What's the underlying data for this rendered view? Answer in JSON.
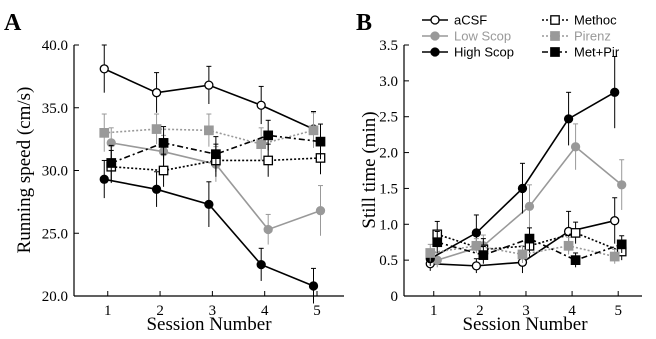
{
  "chart_data": [
    {
      "panel": "A",
      "type": "line",
      "xlabel": "Session Number",
      "ylabel": "Running speed (cm/s)",
      "x": [
        1,
        2,
        3,
        4,
        5
      ],
      "xticks": [
        "1",
        "2",
        "3",
        "4",
        "5"
      ],
      "ylim": [
        20,
        40
      ],
      "yticks": [
        "20.0",
        "25.0",
        "30.0",
        "35.0",
        "40.0"
      ],
      "legend": "none",
      "grid": false,
      "series": [
        {
          "key": "acsf",
          "values": [
            38.1,
            36.2,
            36.8,
            35.2,
            33.3
          ],
          "err": [
            1.9,
            1.6,
            1.5,
            1.5,
            1.4
          ]
        },
        {
          "key": "lowscop",
          "values": [
            32.2,
            31.5,
            30.5,
            25.3,
            26.8
          ],
          "err": [
            1.2,
            1.3,
            1.4,
            1.2,
            2.0
          ]
        },
        {
          "key": "highscop",
          "values": [
            29.3,
            28.5,
            27.3,
            22.5,
            20.8
          ],
          "err": [
            1.5,
            1.4,
            1.8,
            1.3,
            1.4
          ]
        },
        {
          "key": "methoc",
          "values": [
            30.3,
            30.0,
            30.8,
            30.8,
            31.0
          ],
          "err": [
            1.3,
            1.3,
            1.3,
            1.3,
            1.3
          ]
        },
        {
          "key": "pirenz",
          "values": [
            33.0,
            33.3,
            33.2,
            32.1,
            33.2
          ],
          "err": [
            1.5,
            1.2,
            1.3,
            1.3,
            1.4
          ]
        },
        {
          "key": "metpir",
          "values": [
            30.6,
            32.2,
            31.3,
            32.8,
            32.3
          ],
          "err": [
            1.4,
            1.3,
            1.4,
            1.2,
            1.4
          ]
        }
      ]
    },
    {
      "panel": "B",
      "type": "line",
      "xlabel": "Session Number",
      "ylabel": "Still time (min)",
      "x": [
        1,
        2,
        3,
        4,
        5
      ],
      "xticks": [
        "1",
        "2",
        "3",
        "4",
        "5"
      ],
      "ylim": [
        0,
        3.5
      ],
      "yticks": [
        "0",
        "0.5",
        "1.0",
        "1.5",
        "2.0",
        "2.5",
        "3.0",
        "3.5"
      ],
      "legend": "top-left",
      "grid": false,
      "series": [
        {
          "key": "acsf",
          "values": [
            0.45,
            0.42,
            0.47,
            0.9,
            1.05
          ],
          "err": [
            0.1,
            0.1,
            0.15,
            0.28,
            0.32
          ]
        },
        {
          "key": "lowscop",
          "values": [
            0.5,
            0.7,
            1.25,
            2.08,
            1.55
          ],
          "err": [
            0.1,
            0.15,
            0.3,
            0.32,
            0.35
          ]
        },
        {
          "key": "highscop",
          "values": [
            0.52,
            0.88,
            1.5,
            2.47,
            2.84
          ],
          "err": [
            0.1,
            0.25,
            0.35,
            0.37,
            0.5
          ]
        },
        {
          "key": "methoc",
          "values": [
            0.86,
            0.65,
            0.7,
            0.88,
            0.62
          ],
          "err": [
            0.18,
            0.15,
            0.15,
            0.15,
            0.12
          ]
        },
        {
          "key": "pirenz",
          "values": [
            0.6,
            0.7,
            0.58,
            0.7,
            0.55
          ],
          "err": [
            0.12,
            0.1,
            0.12,
            0.12,
            0.1
          ]
        },
        {
          "key": "metpir",
          "values": [
            0.75,
            0.57,
            0.8,
            0.5,
            0.72
          ],
          "err": [
            0.15,
            0.12,
            0.15,
            0.1,
            0.12
          ]
        }
      ]
    }
  ],
  "legend_entries": [
    {
      "key": "acsf",
      "label": "aCSF",
      "color": "#000000",
      "marker": "circle-open",
      "line": "solid"
    },
    {
      "key": "lowscop",
      "label": "Low Scop",
      "color": "#999999",
      "marker": "circle-filled",
      "line": "solid"
    },
    {
      "key": "highscop",
      "label": "High Scop",
      "color": "#000000",
      "marker": "circle-filled",
      "line": "solid"
    },
    {
      "key": "methoc",
      "label": "Methoc",
      "color": "#000000",
      "marker": "square-open",
      "line": "dotted"
    },
    {
      "key": "pirenz",
      "label": "Pirenz",
      "color": "#999999",
      "marker": "square-filled",
      "line": "dotted"
    },
    {
      "key": "metpir",
      "label": "Met+Pir",
      "color": "#000000",
      "marker": "square-filled",
      "line": "dashdot"
    }
  ]
}
